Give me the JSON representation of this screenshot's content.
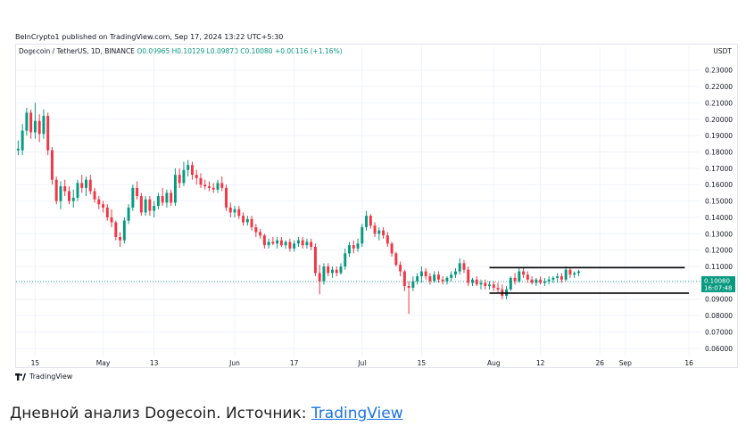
{
  "header": {
    "published": "BeInCrypto1 published on TradingView.com, Sep 17, 2024 13:22 UTC+5:30",
    "symbol": "Dogecoin / TetherUS, 1D, BINANCE",
    "open": "O0.09965",
    "high": "H0.10129",
    "low": "L0.09870",
    "close": "C0.10080",
    "change": "+0.00116 (+1.16%)",
    "currency": "USDT"
  },
  "footer": {
    "brand": "TradingView"
  },
  "caption": {
    "text": "Дневной анализ Dogecoin. Источник: ",
    "link": "TradingView"
  },
  "price_tag": {
    "price": "0.10080",
    "countdown": "16:07:48"
  },
  "colors": {
    "up": "#089981",
    "down": "#f23645",
    "grid": "#f0f3fa",
    "dotted": "#26a69a"
  },
  "chart_data": {
    "type": "candlestick",
    "y_axis": {
      "ticks": [
        "0.23000",
        "0.22000",
        "0.21000",
        "0.20000",
        "0.19000",
        "0.18000",
        "0.17000",
        "0.16000",
        "0.15000",
        "0.14000",
        "0.13000",
        "0.12000",
        "0.11000",
        "0.10000",
        "0.09000",
        "0.08000",
        "0.07000",
        "0.06000"
      ],
      "range": [
        0.055,
        0.238
      ],
      "position": "right"
    },
    "x_axis": {
      "ticks": [
        {
          "label": "15",
          "day": 0
        },
        {
          "label": "May",
          "day": 16
        },
        {
          "label": "13",
          "day": 28
        },
        {
          "label": "Jun",
          "day": 47
        },
        {
          "label": "17",
          "day": 61
        },
        {
          "label": "Jul",
          "day": 77
        },
        {
          "label": "15",
          "day": 91
        },
        {
          "label": "Aug",
          "day": 108
        },
        {
          "label": "12",
          "day": 119
        },
        {
          "label": "26",
          "day": 133
        },
        {
          "label": "Sep",
          "day": 139
        },
        {
          "label": "16",
          "day": 154
        }
      ],
      "day_range": [
        -4.5,
        156.7
      ]
    },
    "levels": [
      {
        "name": "range-top",
        "value": 0.1093,
        "from_day": 107,
        "to_day": 153
      },
      {
        "name": "range-bottom",
        "value": 0.0937,
        "from_day": 107,
        "to_day": 154
      }
    ],
    "last_price": 0.1008,
    "ohlc": [
      [
        -4,
        0.181,
        0.187,
        0.178,
        0.182
      ],
      [
        -3,
        0.181,
        0.197,
        0.178,
        0.193
      ],
      [
        -2,
        0.193,
        0.207,
        0.19,
        0.204
      ],
      [
        -1,
        0.204,
        0.206,
        0.188,
        0.192
      ],
      [
        0,
        0.192,
        0.21,
        0.188,
        0.199
      ],
      [
        1,
        0.199,
        0.203,
        0.186,
        0.191
      ],
      [
        2,
        0.191,
        0.206,
        0.188,
        0.202
      ],
      [
        3,
        0.202,
        0.204,
        0.178,
        0.181
      ],
      [
        4,
        0.181,
        0.183,
        0.16,
        0.163
      ],
      [
        5,
        0.163,
        0.165,
        0.148,
        0.15
      ],
      [
        6,
        0.15,
        0.162,
        0.145,
        0.159
      ],
      [
        7,
        0.159,
        0.163,
        0.153,
        0.156
      ],
      [
        8,
        0.156,
        0.159,
        0.148,
        0.15
      ],
      [
        9,
        0.15,
        0.157,
        0.146,
        0.152
      ],
      [
        10,
        0.152,
        0.163,
        0.15,
        0.161
      ],
      [
        11,
        0.161,
        0.166,
        0.155,
        0.158
      ],
      [
        12,
        0.158,
        0.165,
        0.153,
        0.163
      ],
      [
        13,
        0.163,
        0.166,
        0.154,
        0.156
      ],
      [
        14,
        0.156,
        0.158,
        0.149,
        0.151
      ],
      [
        15,
        0.151,
        0.153,
        0.145,
        0.148
      ],
      [
        16,
        0.148,
        0.15,
        0.143,
        0.146
      ],
      [
        17,
        0.146,
        0.148,
        0.138,
        0.14
      ],
      [
        18,
        0.14,
        0.145,
        0.134,
        0.137
      ],
      [
        19,
        0.137,
        0.138,
        0.126,
        0.128
      ],
      [
        20,
        0.128,
        0.131,
        0.122,
        0.126
      ],
      [
        21,
        0.126,
        0.14,
        0.124,
        0.138
      ],
      [
        22,
        0.138,
        0.148,
        0.136,
        0.146
      ],
      [
        23,
        0.146,
        0.16,
        0.144,
        0.158
      ],
      [
        24,
        0.158,
        0.162,
        0.151,
        0.153
      ],
      [
        25,
        0.153,
        0.155,
        0.141,
        0.143
      ],
      [
        26,
        0.143,
        0.153,
        0.141,
        0.151
      ],
      [
        27,
        0.151,
        0.153,
        0.141,
        0.144
      ],
      [
        28,
        0.144,
        0.15,
        0.14,
        0.147
      ],
      [
        29,
        0.147,
        0.155,
        0.145,
        0.153
      ],
      [
        30,
        0.153,
        0.158,
        0.147,
        0.149
      ],
      [
        31,
        0.149,
        0.157,
        0.146,
        0.155
      ],
      [
        32,
        0.155,
        0.157,
        0.147,
        0.149
      ],
      [
        33,
        0.149,
        0.17,
        0.147,
        0.166
      ],
      [
        34,
        0.166,
        0.17,
        0.158,
        0.161
      ],
      [
        35,
        0.161,
        0.174,
        0.159,
        0.169
      ],
      [
        36,
        0.169,
        0.175,
        0.165,
        0.172
      ],
      [
        37,
        0.172,
        0.174,
        0.163,
        0.166
      ],
      [
        38,
        0.166,
        0.169,
        0.16,
        0.164
      ],
      [
        39,
        0.164,
        0.167,
        0.158,
        0.16
      ],
      [
        40,
        0.16,
        0.163,
        0.157,
        0.159
      ],
      [
        41,
        0.159,
        0.162,
        0.156,
        0.158
      ],
      [
        42,
        0.158,
        0.161,
        0.155,
        0.157
      ],
      [
        43,
        0.157,
        0.163,
        0.155,
        0.161
      ],
      [
        44,
        0.161,
        0.165,
        0.156,
        0.158
      ],
      [
        45,
        0.158,
        0.16,
        0.144,
        0.146
      ],
      [
        46,
        0.146,
        0.149,
        0.14,
        0.143
      ],
      [
        47,
        0.143,
        0.147,
        0.14,
        0.145
      ],
      [
        48,
        0.145,
        0.147,
        0.139,
        0.141
      ],
      [
        49,
        0.141,
        0.143,
        0.135,
        0.137
      ],
      [
        50,
        0.137,
        0.141,
        0.135,
        0.139
      ],
      [
        51,
        0.139,
        0.141,
        0.132,
        0.134
      ],
      [
        52,
        0.134,
        0.136,
        0.128,
        0.131
      ],
      [
        53,
        0.131,
        0.133,
        0.127,
        0.129
      ],
      [
        54,
        0.129,
        0.13,
        0.121,
        0.123
      ],
      [
        55,
        0.123,
        0.127,
        0.121,
        0.125
      ],
      [
        56,
        0.125,
        0.128,
        0.123,
        0.124
      ],
      [
        57,
        0.124,
        0.128,
        0.121,
        0.126
      ],
      [
        58,
        0.126,
        0.128,
        0.122,
        0.123
      ],
      [
        59,
        0.123,
        0.126,
        0.121,
        0.125
      ],
      [
        60,
        0.125,
        0.127,
        0.119,
        0.121
      ],
      [
        61,
        0.121,
        0.126,
        0.119,
        0.124
      ],
      [
        62,
        0.124,
        0.128,
        0.122,
        0.126
      ],
      [
        63,
        0.126,
        0.128,
        0.121,
        0.123
      ],
      [
        64,
        0.123,
        0.127,
        0.121,
        0.125
      ],
      [
        65,
        0.125,
        0.127,
        0.12,
        0.122
      ],
      [
        66,
        0.122,
        0.124,
        0.104,
        0.106
      ],
      [
        67,
        0.106,
        0.111,
        0.093,
        0.101
      ],
      [
        68,
        0.101,
        0.112,
        0.099,
        0.11
      ],
      [
        69,
        0.11,
        0.112,
        0.104,
        0.106
      ],
      [
        70,
        0.106,
        0.11,
        0.103,
        0.108
      ],
      [
        71,
        0.108,
        0.11,
        0.104,
        0.106
      ],
      [
        72,
        0.106,
        0.112,
        0.105,
        0.11
      ],
      [
        73,
        0.11,
        0.121,
        0.108,
        0.118
      ],
      [
        74,
        0.118,
        0.125,
        0.116,
        0.123
      ],
      [
        75,
        0.123,
        0.126,
        0.118,
        0.121
      ],
      [
        76,
        0.121,
        0.127,
        0.119,
        0.124
      ],
      [
        77,
        0.124,
        0.136,
        0.122,
        0.134
      ],
      [
        78,
        0.134,
        0.144,
        0.132,
        0.141
      ],
      [
        79,
        0.141,
        0.142,
        0.133,
        0.135
      ],
      [
        80,
        0.135,
        0.137,
        0.128,
        0.13
      ],
      [
        81,
        0.13,
        0.134,
        0.126,
        0.132
      ],
      [
        82,
        0.132,
        0.134,
        0.127,
        0.129
      ],
      [
        83,
        0.129,
        0.131,
        0.122,
        0.124
      ],
      [
        84,
        0.124,
        0.125,
        0.116,
        0.118
      ],
      [
        85,
        0.118,
        0.119,
        0.11,
        0.111
      ],
      [
        86,
        0.111,
        0.113,
        0.104,
        0.107
      ],
      [
        87,
        0.107,
        0.108,
        0.095,
        0.098
      ],
      [
        88,
        0.098,
        0.101,
        0.081,
        0.097
      ],
      [
        89,
        0.097,
        0.104,
        0.095,
        0.101
      ],
      [
        90,
        0.101,
        0.106,
        0.099,
        0.104
      ],
      [
        91,
        0.104,
        0.11,
        0.1,
        0.107
      ],
      [
        92,
        0.107,
        0.109,
        0.102,
        0.104
      ],
      [
        93,
        0.104,
        0.106,
        0.099,
        0.101
      ],
      [
        94,
        0.101,
        0.107,
        0.1,
        0.105
      ],
      [
        95,
        0.105,
        0.107,
        0.1,
        0.102
      ],
      [
        96,
        0.102,
        0.104,
        0.099,
        0.101
      ],
      [
        97,
        0.101,
        0.104,
        0.099,
        0.103
      ],
      [
        98,
        0.103,
        0.107,
        0.101,
        0.105
      ],
      [
        99,
        0.105,
        0.109,
        0.103,
        0.107
      ],
      [
        100,
        0.107,
        0.115,
        0.105,
        0.112
      ],
      [
        101,
        0.112,
        0.114,
        0.106,
        0.108
      ],
      [
        102,
        0.108,
        0.11,
        0.098,
        0.1
      ],
      [
        103,
        0.1,
        0.103,
        0.098,
        0.102
      ],
      [
        104,
        0.102,
        0.104,
        0.098,
        0.099
      ],
      [
        105,
        0.099,
        0.102,
        0.096,
        0.1
      ],
      [
        106,
        0.1,
        0.102,
        0.096,
        0.098
      ],
      [
        107,
        0.098,
        0.101,
        0.096,
        0.099
      ],
      [
        108,
        0.099,
        0.101,
        0.095,
        0.097
      ],
      [
        109,
        0.097,
        0.1,
        0.094,
        0.096
      ],
      [
        110,
        0.096,
        0.099,
        0.09,
        0.092
      ],
      [
        111,
        0.092,
        0.098,
        0.09,
        0.096
      ],
      [
        112,
        0.096,
        0.104,
        0.095,
        0.103
      ],
      [
        113,
        0.103,
        0.106,
        0.099,
        0.101
      ],
      [
        114,
        0.101,
        0.109,
        0.1,
        0.107
      ],
      [
        115,
        0.107,
        0.109,
        0.103,
        0.105
      ],
      [
        116,
        0.105,
        0.107,
        0.1,
        0.102
      ],
      [
        117,
        0.102,
        0.104,
        0.099,
        0.1
      ],
      [
        118,
        0.1,
        0.103,
        0.098,
        0.102
      ],
      [
        119,
        0.102,
        0.104,
        0.099,
        0.1
      ],
      [
        120,
        0.1,
        0.103,
        0.098,
        0.101
      ],
      [
        121,
        0.101,
        0.104,
        0.099,
        0.102
      ],
      [
        122,
        0.102,
        0.104,
        0.1,
        0.103
      ],
      [
        123,
        0.103,
        0.106,
        0.1,
        0.104
      ],
      [
        124,
        0.104,
        0.106,
        0.1,
        0.102
      ],
      [
        125,
        0.102,
        0.11,
        0.101,
        0.108
      ],
      [
        126,
        0.108,
        0.109,
        0.103,
        0.105
      ],
      [
        127,
        0.105,
        0.107,
        0.103,
        0.106
      ],
      [
        128,
        0.106,
        0.108,
        0.104,
        0.107
      ]
    ]
  }
}
